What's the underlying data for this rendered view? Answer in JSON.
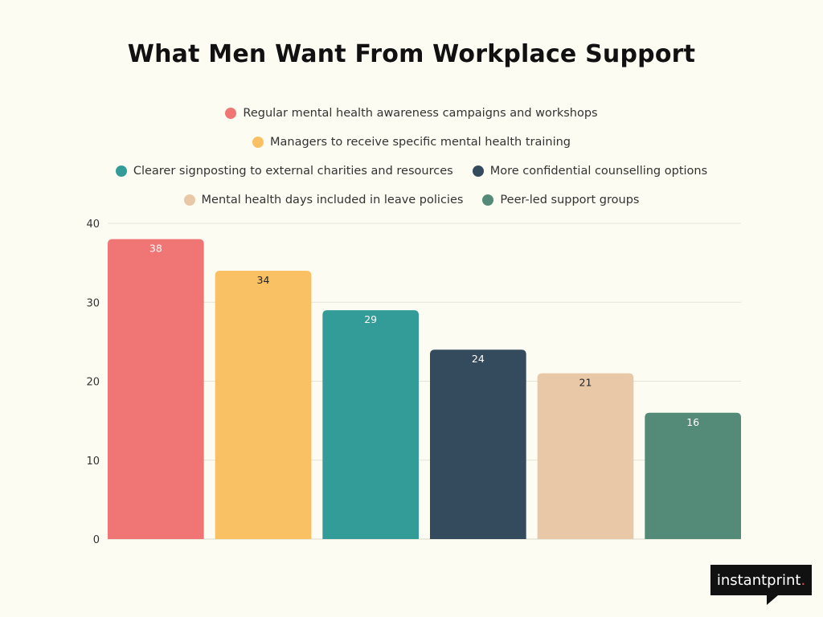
{
  "chart_data": {
    "type": "bar",
    "title": "What Men Want From Workplace Support",
    "categories": [
      "Regular mental health awareness campaigns and workshops",
      "Managers to receive specific mental health training",
      "Clearer signposting to external charities and resources",
      "More confidential counselling options",
      "Mental health days included in leave policies",
      "Peer-led support groups"
    ],
    "values": [
      38,
      34,
      29,
      24,
      21,
      16
    ],
    "colors": [
      "#ef7674",
      "#f9c163",
      "#339c99",
      "#344b5d",
      "#e9c8a8",
      "#548a78"
    ],
    "label_colors": [
      "#ffffff",
      "#222222",
      "#ffffff",
      "#ffffff",
      "#222222",
      "#ffffff"
    ],
    "ylim": [
      0,
      40
    ],
    "yticks": [
      0,
      10,
      20,
      30,
      40
    ],
    "grid": true,
    "legend_position": "top",
    "xlabel": "",
    "ylabel": ""
  },
  "logo": {
    "text": "instantprint",
    "dot": "."
  }
}
